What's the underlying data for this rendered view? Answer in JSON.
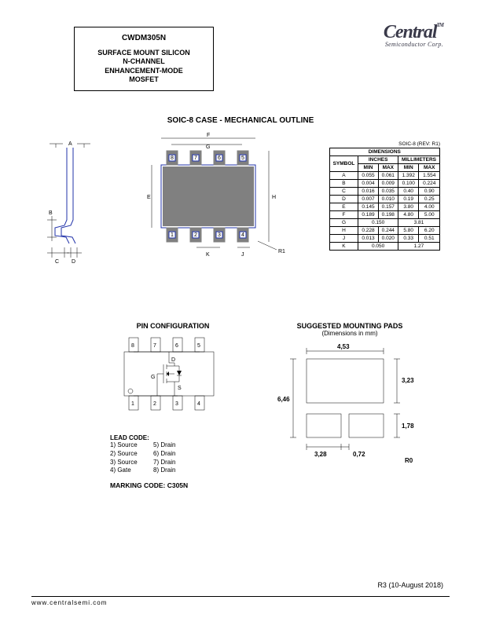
{
  "header": {
    "part_number": "CWDM305N",
    "description_lines": [
      "SURFACE MOUNT SILICON",
      "N-CHANNEL",
      "ENHANCEMENT-MODE",
      "MOSFET"
    ]
  },
  "logo": {
    "main": "Central",
    "sub": "Semiconductor Corp.",
    "tm": "TM"
  },
  "section_title": "SOIC-8 CASE - MECHANICAL OUTLINE",
  "dim_table": {
    "title": "DIMENSIONS",
    "col_groups": [
      "INCHES",
      "MILLIMETERS"
    ],
    "cols": [
      "MIN",
      "MAX",
      "MIN",
      "MAX"
    ],
    "symbol_label": "SYMBOL",
    "rows": [
      {
        "s": "A",
        "v": [
          "0.055",
          "0.061",
          "1.392",
          "1.554"
        ]
      },
      {
        "s": "B",
        "v": [
          "0.004",
          "0.009",
          "0.100",
          "0.224"
        ]
      },
      {
        "s": "C",
        "v": [
          "0.016",
          "0.035",
          "0.40",
          "0.90"
        ]
      },
      {
        "s": "D",
        "v": [
          "0.007",
          "0.010",
          "0.19",
          "0.25"
        ]
      },
      {
        "s": "E",
        "v": [
          "0.145",
          "0.157",
          "3.80",
          "4.00"
        ]
      },
      {
        "s": "F",
        "v": [
          "0.189",
          "0.198",
          "4.80",
          "5.00"
        ]
      },
      {
        "s": "G",
        "v": [
          "0.150",
          "",
          "3.81",
          ""
        ],
        "span": [
          2,
          2
        ]
      },
      {
        "s": "H",
        "v": [
          "0.228",
          "0.244",
          "5.80",
          "6.20"
        ]
      },
      {
        "s": "J",
        "v": [
          "0.013",
          "0.020",
          "0.33",
          "0.51"
        ]
      },
      {
        "s": "K",
        "v": [
          "0.050",
          "",
          "1.27",
          ""
        ],
        "span": [
          2,
          2
        ]
      }
    ],
    "note": "SOIC-8 (REV: R1)"
  },
  "pin_config": {
    "title": "PIN CONFIGURATION",
    "lead_code_title": "LEAD CODE:",
    "leads": [
      [
        "1) Source",
        "5) Drain"
      ],
      [
        "2) Source",
        "6) Drain"
      ],
      [
        "3) Source",
        "7) Drain"
      ],
      [
        "4) Gate",
        "8) Drain"
      ]
    ],
    "marking_label": "MARKING CODE: C305N",
    "pin_top": [
      "8",
      "7",
      "6",
      "5"
    ],
    "pin_bot": [
      "1",
      "2",
      "3",
      "4"
    ],
    "pin_letters": {
      "d": "D",
      "g": "G",
      "s": "S"
    }
  },
  "mounting": {
    "title": "SUGGESTED MOUNTING PADS",
    "sub": "(Dimensions in mm)",
    "dims": {
      "w": "4,53",
      "h": "6,46",
      "padw": "3,28",
      "gap": "0,72",
      "padh": "1,78",
      "padtoph": "3,23"
    },
    "rev": "R0"
  },
  "mech_labels": [
    "A",
    "B",
    "C",
    "D",
    "E",
    "F",
    "G",
    "H",
    "J",
    "K",
    "R1"
  ],
  "mech_pins_top": [
    "8",
    "7",
    "6",
    "5"
  ],
  "mech_pins_bot": [
    "1",
    "2",
    "3",
    "4"
  ],
  "revision": "R3 (10-August 2018)",
  "footer_url": "www.centralsemi.com"
}
